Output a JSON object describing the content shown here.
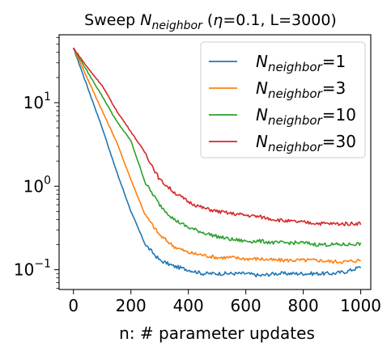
{
  "chart_data": {
    "type": "line",
    "title": {
      "prefix": "Sweep ",
      "var_base": "N",
      "var_sub": "neighbor",
      "mid": " (",
      "eta_symbol": "η",
      "suffix": "=0.1, L=3000)"
    },
    "xlabel": "n: # parameter updates",
    "ylabel": "",
    "xlim": [
      -50,
      1035
    ],
    "ylim": [
      0.058,
      65
    ],
    "yscale": "log",
    "grid": false,
    "legend_position": "top-right",
    "xticks": [
      0,
      200,
      400,
      600,
      800,
      1000
    ],
    "xtick_labels": [
      "0",
      "200",
      "400",
      "600",
      "800",
      "1000"
    ],
    "yticks": [
      {
        "value": 0.1,
        "base": "10",
        "exp": "−1"
      },
      {
        "value": 1,
        "base": "10",
        "exp": "0"
      },
      {
        "value": 10,
        "base": "10",
        "exp": "1"
      }
    ],
    "x": [
      0,
      50,
      100,
      150,
      200,
      250,
      300,
      350,
      400,
      450,
      500,
      550,
      600,
      650,
      700,
      750,
      800,
      850,
      900,
      950,
      1000
    ],
    "series": [
      {
        "label_base": "N",
        "label_sub": "neighbor",
        "label_suffix": "=1",
        "color": "#1f77b4",
        "values": [
          45,
          15,
          5,
          1.5,
          0.5,
          0.2,
          0.13,
          0.11,
          0.1,
          0.09,
          0.09,
          0.09,
          0.09,
          0.085,
          0.09,
          0.09,
          0.09,
          0.09,
          0.09,
          0.095,
          0.108
        ]
      },
      {
        "label_base": "N",
        "label_sub": "neighbor",
        "label_suffix": "=3",
        "color": "#ff7f0e",
        "values": [
          45,
          19,
          8,
          3.4,
          1.2,
          0.45,
          0.26,
          0.19,
          0.16,
          0.15,
          0.14,
          0.14,
          0.135,
          0.135,
          0.13,
          0.13,
          0.13,
          0.13,
          0.125,
          0.125,
          0.13
        ]
      },
      {
        "label_base": "N",
        "label_sub": "neighbor",
        "label_suffix": "=10",
        "color": "#2ca02c",
        "values": [
          45,
          23,
          12,
          6,
          3.5,
          1.1,
          0.6,
          0.4,
          0.32,
          0.28,
          0.25,
          0.23,
          0.22,
          0.22,
          0.21,
          0.21,
          0.21,
          0.2,
          0.2,
          0.2,
          0.205
        ]
      },
      {
        "label_base": "N",
        "label_sub": "neighbor",
        "label_suffix": "=30",
        "color": "#d62728",
        "values": [
          45,
          26,
          16,
          8,
          4.5,
          2.5,
          1.2,
          0.85,
          0.65,
          0.55,
          0.5,
          0.47,
          0.45,
          0.43,
          0.4,
          0.38,
          0.37,
          0.36,
          0.355,
          0.355,
          0.36
        ]
      }
    ]
  }
}
